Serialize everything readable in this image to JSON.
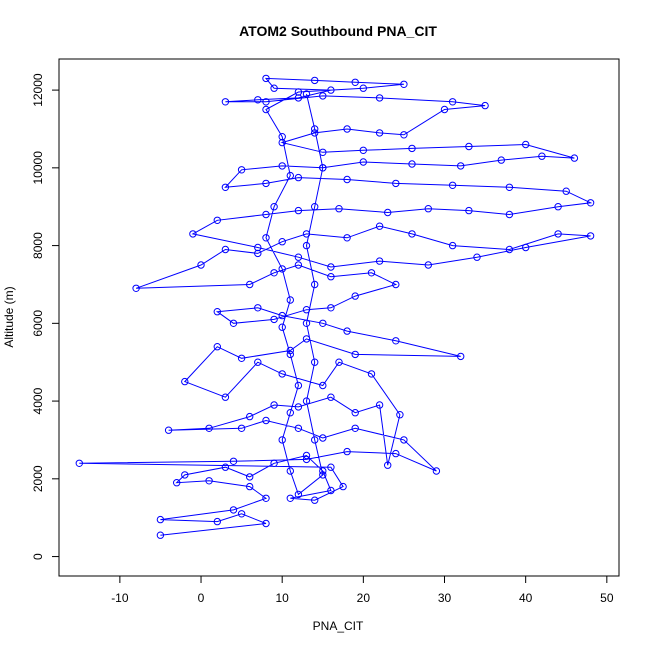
{
  "chart_data": {
    "type": "scatter",
    "title": "ATOM2 Southbound PNA_CIT",
    "xlabel": "PNA_CIT",
    "ylabel": "Altitude (m)",
    "xlim": [
      -17.5,
      51.5
    ],
    "ylim": [
      -500,
      12800
    ],
    "xticks": [
      -10,
      0,
      10,
      20,
      30,
      40,
      50
    ],
    "yticks": [
      0,
      2000,
      4000,
      6000,
      8000,
      10000,
      12000
    ],
    "grid": false,
    "legend": "none",
    "series": [
      {
        "marker": "open-circle",
        "line": true,
        "points": [
          [
            -5.0,
            550
          ],
          [
            8.0,
            850
          ],
          [
            5.0,
            1100
          ],
          [
            2.0,
            900
          ],
          [
            -5.0,
            950
          ],
          [
            4.0,
            1200
          ],
          [
            8.0,
            1500
          ],
          [
            6.0,
            1800
          ],
          [
            1.0,
            1950
          ],
          [
            -3.0,
            1900
          ],
          [
            -2.0,
            2100
          ],
          [
            3.0,
            2300
          ],
          [
            6.0,
            2050
          ],
          [
            9.0,
            2400
          ],
          [
            13.0,
            2600
          ],
          [
            15.0,
            2200
          ],
          [
            16.0,
            1700
          ],
          [
            11.0,
            1500
          ],
          [
            14.0,
            1450
          ],
          [
            17.5,
            1800
          ],
          [
            16.0,
            2300
          ],
          [
            -15.0,
            2400
          ],
          [
            4.0,
            2450
          ],
          [
            13.0,
            2500
          ],
          [
            18.0,
            2700
          ],
          [
            24.0,
            2650
          ],
          [
            29.0,
            2200
          ],
          [
            25.0,
            3000
          ],
          [
            19.0,
            3300
          ],
          [
            15.0,
            3050
          ],
          [
            12.0,
            3300
          ],
          [
            8.0,
            3500
          ],
          [
            5.0,
            3300
          ],
          [
            -4.0,
            3250
          ],
          [
            1.0,
            3300
          ],
          [
            6.0,
            3600
          ],
          [
            9.0,
            3900
          ],
          [
            12.0,
            3850
          ],
          [
            16.0,
            4100
          ],
          [
            19.0,
            3700
          ],
          [
            22.0,
            3900
          ],
          [
            23.0,
            2350
          ],
          [
            24.5,
            3650
          ],
          [
            21.0,
            4700
          ],
          [
            17.0,
            5000
          ],
          [
            15.0,
            4400
          ],
          [
            10.0,
            4700
          ],
          [
            7.0,
            5000
          ],
          [
            3.0,
            4100
          ],
          [
            -2.0,
            4500
          ],
          [
            2.0,
            5400
          ],
          [
            5.0,
            5100
          ],
          [
            11.0,
            5300
          ],
          [
            13.0,
            5600
          ],
          [
            19.0,
            5200
          ],
          [
            32.0,
            5150
          ],
          [
            24.0,
            5550
          ],
          [
            18.0,
            5800
          ],
          [
            15.0,
            6000
          ],
          [
            10.0,
            6200
          ],
          [
            7.0,
            6400
          ],
          [
            2.0,
            6300
          ],
          [
            4.0,
            6000
          ],
          [
            9.0,
            6100
          ],
          [
            13.0,
            6350
          ],
          [
            16.0,
            6400
          ],
          [
            19.0,
            6700
          ],
          [
            24.0,
            7000
          ],
          [
            21.0,
            7300
          ],
          [
            16.0,
            7200
          ],
          [
            12.0,
            7500
          ],
          [
            9.0,
            7300
          ],
          [
            6.0,
            7000
          ],
          [
            -8.0,
            6900
          ],
          [
            0.0,
            7500
          ],
          [
            3.0,
            7900
          ],
          [
            7.0,
            7800
          ],
          [
            10.0,
            8100
          ],
          [
            13.0,
            8300
          ],
          [
            18.0,
            8200
          ],
          [
            22.0,
            8500
          ],
          [
            26.0,
            8300
          ],
          [
            31.0,
            8000
          ],
          [
            38.0,
            7900
          ],
          [
            44.0,
            8300
          ],
          [
            48.0,
            8250
          ],
          [
            40.0,
            7950
          ],
          [
            34.0,
            7700
          ],
          [
            28.0,
            7500
          ],
          [
            22.0,
            7600
          ],
          [
            16.0,
            7450
          ],
          [
            12.0,
            7700
          ],
          [
            7.0,
            7950
          ],
          [
            -1.0,
            8300
          ],
          [
            2.0,
            8650
          ],
          [
            8.0,
            8800
          ],
          [
            12.0,
            8900
          ],
          [
            17.0,
            8950
          ],
          [
            23.0,
            8850
          ],
          [
            28.0,
            8950
          ],
          [
            33.0,
            8900
          ],
          [
            38.0,
            8800
          ],
          [
            44.0,
            9000
          ],
          [
            48.0,
            9100
          ],
          [
            45.0,
            9400
          ],
          [
            38.0,
            9500
          ],
          [
            31.0,
            9550
          ],
          [
            24.0,
            9600
          ],
          [
            18.0,
            9700
          ],
          [
            12.0,
            9750
          ],
          [
            8.0,
            9600
          ],
          [
            3.0,
            9500
          ],
          [
            5.0,
            9950
          ],
          [
            10.0,
            10050
          ],
          [
            15.0,
            10000
          ],
          [
            20.0,
            10150
          ],
          [
            26.0,
            10100
          ],
          [
            32.0,
            10050
          ],
          [
            37.0,
            10200
          ],
          [
            42.0,
            10300
          ],
          [
            46.0,
            10250
          ],
          [
            40.0,
            10600
          ],
          [
            33.0,
            10550
          ],
          [
            26.0,
            10500
          ],
          [
            20.0,
            10450
          ],
          [
            15.0,
            10400
          ],
          [
            10.0,
            10650
          ],
          [
            14.0,
            10900
          ],
          [
            18.0,
            11000
          ],
          [
            22.0,
            10900
          ],
          [
            25.0,
            10850
          ],
          [
            30.0,
            11500
          ],
          [
            35.0,
            11600
          ],
          [
            31.0,
            11700
          ],
          [
            22.0,
            11800
          ],
          [
            15.0,
            11850
          ],
          [
            8.0,
            11700
          ],
          [
            3.0,
            11700
          ],
          [
            7.0,
            11750
          ],
          [
            12.0,
            11800
          ],
          [
            16.0,
            12000
          ],
          [
            9.0,
            12050
          ],
          [
            8.0,
            12300
          ],
          [
            14.0,
            12250
          ],
          [
            19.0,
            12200
          ],
          [
            25.0,
            12150
          ],
          [
            20.0,
            12050
          ],
          [
            12.0,
            11950
          ],
          [
            8.0,
            11500
          ],
          [
            10.0,
            10800
          ],
          [
            11.0,
            9800
          ],
          [
            9.0,
            9000
          ],
          [
            8.0,
            8200
          ],
          [
            10.0,
            7400
          ],
          [
            11.0,
            6600
          ],
          [
            10.0,
            5900
          ],
          [
            11.0,
            5200
          ],
          [
            12.0,
            4400
          ],
          [
            11.0,
            3700
          ],
          [
            10.0,
            3000
          ],
          [
            11.0,
            2200
          ],
          [
            12.0,
            1600
          ],
          [
            15.0,
            2100
          ],
          [
            14.0,
            3000
          ],
          [
            13.0,
            4000
          ],
          [
            14.0,
            5000
          ],
          [
            13.0,
            6000
          ],
          [
            14.0,
            7000
          ],
          [
            13.0,
            8000
          ],
          [
            14.0,
            9000
          ],
          [
            15.0,
            10000
          ],
          [
            14.0,
            11000
          ],
          [
            13.0,
            11900
          ]
        ]
      }
    ]
  },
  "colors": {
    "series": "#0000ff",
    "axes": "#000000",
    "background": "#ffffff"
  }
}
